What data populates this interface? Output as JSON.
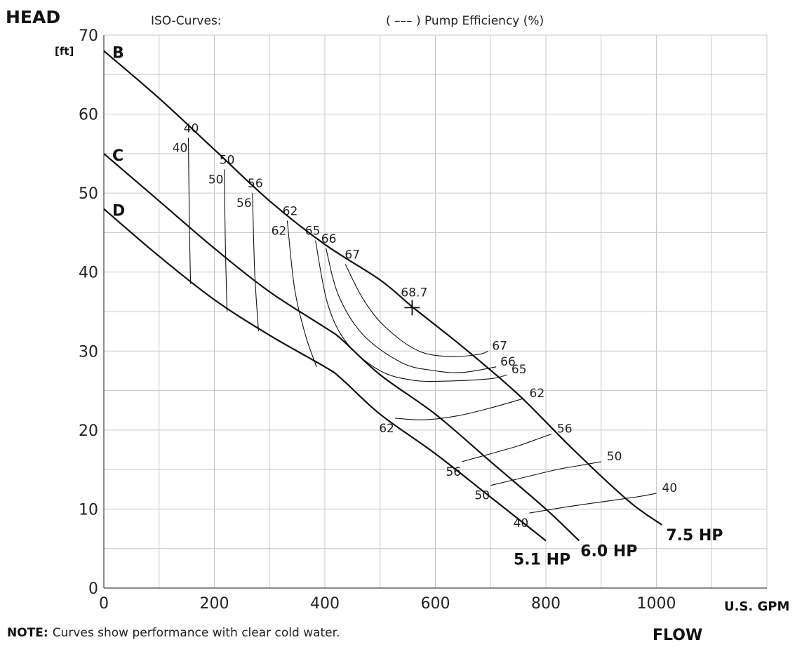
{
  "chart_data": {
    "type": "line",
    "title": "ISO-Curves:",
    "subtitle": "( ––– ) Pump Efficiency (%)",
    "ylabel": "HEAD",
    "yunit": "[ft]",
    "xunit": "U.S. GPM",
    "xlabel": "FLOW",
    "xlim": [
      0,
      1200
    ],
    "ylim": [
      0,
      70
    ],
    "xticks": [
      0,
      200,
      400,
      600,
      800,
      1000
    ],
    "yticks": [
      0,
      10,
      20,
      30,
      40,
      50,
      60,
      70
    ],
    "grid": true,
    "series": [
      {
        "name": "B",
        "power_label": "7.5 HP",
        "points": [
          [
            0,
            68
          ],
          [
            100,
            62
          ],
          [
            200,
            55.5
          ],
          [
            300,
            49
          ],
          [
            400,
            43.5
          ],
          [
            500,
            39
          ],
          [
            560,
            35.5
          ],
          [
            650,
            30.5
          ],
          [
            750,
            24.5
          ],
          [
            850,
            17.5
          ],
          [
            950,
            11
          ],
          [
            1010,
            8
          ]
        ]
      },
      {
        "name": "C",
        "power_label": "6.0 HP",
        "points": [
          [
            0,
            55
          ],
          [
            100,
            49
          ],
          [
            200,
            43
          ],
          [
            300,
            37.5
          ],
          [
            400,
            33
          ],
          [
            430,
            31.5
          ],
          [
            500,
            27
          ],
          [
            600,
            22
          ],
          [
            700,
            16
          ],
          [
            800,
            10
          ],
          [
            860,
            6
          ]
        ]
      },
      {
        "name": "D",
        "power_label": "5.1 HP",
        "points": [
          [
            0,
            48
          ],
          [
            100,
            42
          ],
          [
            200,
            36.5
          ],
          [
            300,
            32
          ],
          [
            400,
            28
          ],
          [
            430,
            26.5
          ],
          [
            500,
            22
          ],
          [
            600,
            17
          ],
          [
            700,
            11.5
          ],
          [
            800,
            6
          ]
        ]
      }
    ],
    "efficiency_isocurves": [
      {
        "label": "40",
        "label_top": "40",
        "label_bottom": "40",
        "points": [
          [
            153,
            57
          ],
          [
            155,
            45
          ],
          [
            157,
            38.5
          ]
        ]
      },
      {
        "label": "50",
        "label_top": "50",
        "label_bottom": "50",
        "points": [
          [
            218,
            53
          ],
          [
            220,
            43
          ],
          [
            223,
            35
          ]
        ]
      },
      {
        "label": "56",
        "label_top": "56",
        "label_bottom": "56",
        "points": [
          [
            269,
            50
          ],
          [
            273,
            40
          ],
          [
            280,
            32.5
          ]
        ]
      },
      {
        "label": "62",
        "label_top": "62",
        "label_bottom": "62",
        "points": [
          [
            332,
            46.5
          ],
          [
            345,
            38
          ],
          [
            365,
            32
          ],
          [
            385,
            28
          ]
        ]
      },
      {
        "label": "65",
        "points": [
          [
            383,
            44
          ],
          [
            405,
            36
          ],
          [
            440,
            31
          ],
          [
            500,
            27.5
          ],
          [
            560,
            26.3
          ],
          [
            620,
            26.2
          ],
          [
            700,
            26.5
          ],
          [
            730,
            27
          ]
        ]
      },
      {
        "label": "66",
        "points": [
          [
            402,
            43
          ],
          [
            425,
            37
          ],
          [
            470,
            32
          ],
          [
            540,
            28.5
          ],
          [
            600,
            27.5
          ],
          [
            650,
            27.3
          ],
          [
            710,
            28
          ]
        ]
      },
      {
        "label": "67",
        "points": [
          [
            437,
            41
          ],
          [
            470,
            36.5
          ],
          [
            510,
            33
          ],
          [
            570,
            30
          ],
          [
            630,
            29.3
          ],
          [
            680,
            29.6
          ],
          [
            695,
            30
          ]
        ]
      },
      {
        "label": "62",
        "label_bottom": "62",
        "label_right": "62",
        "points": [
          [
            527,
            21.5
          ],
          [
            580,
            21.3
          ],
          [
            640,
            21.8
          ],
          [
            700,
            22.8
          ],
          [
            760,
            24
          ]
        ]
      },
      {
        "label": "56",
        "label_bottom": "56",
        "label_right": "56",
        "points": [
          [
            648,
            16
          ],
          [
            700,
            17
          ],
          [
            750,
            18
          ],
          [
            790,
            19
          ],
          [
            810,
            19.5
          ]
        ]
      },
      {
        "label": "50",
        "label_bottom": "50",
        "label_right": "50",
        "points": [
          [
            700,
            13
          ],
          [
            760,
            14
          ],
          [
            820,
            15
          ],
          [
            860,
            15.5
          ],
          [
            900,
            16
          ]
        ]
      },
      {
        "label": "40",
        "label_bottom": "40",
        "label_right": "40",
        "points": [
          [
            770,
            9.5
          ],
          [
            840,
            10.3
          ],
          [
            910,
            11
          ],
          [
            970,
            11.6
          ],
          [
            1000,
            12
          ]
        ]
      }
    ],
    "best_efficiency_point": {
      "label": "68.7",
      "x": 558,
      "y": 35.5
    }
  },
  "note": {
    "prefix": "NOTE:",
    "text": "Curves show performance with clear cold water."
  }
}
